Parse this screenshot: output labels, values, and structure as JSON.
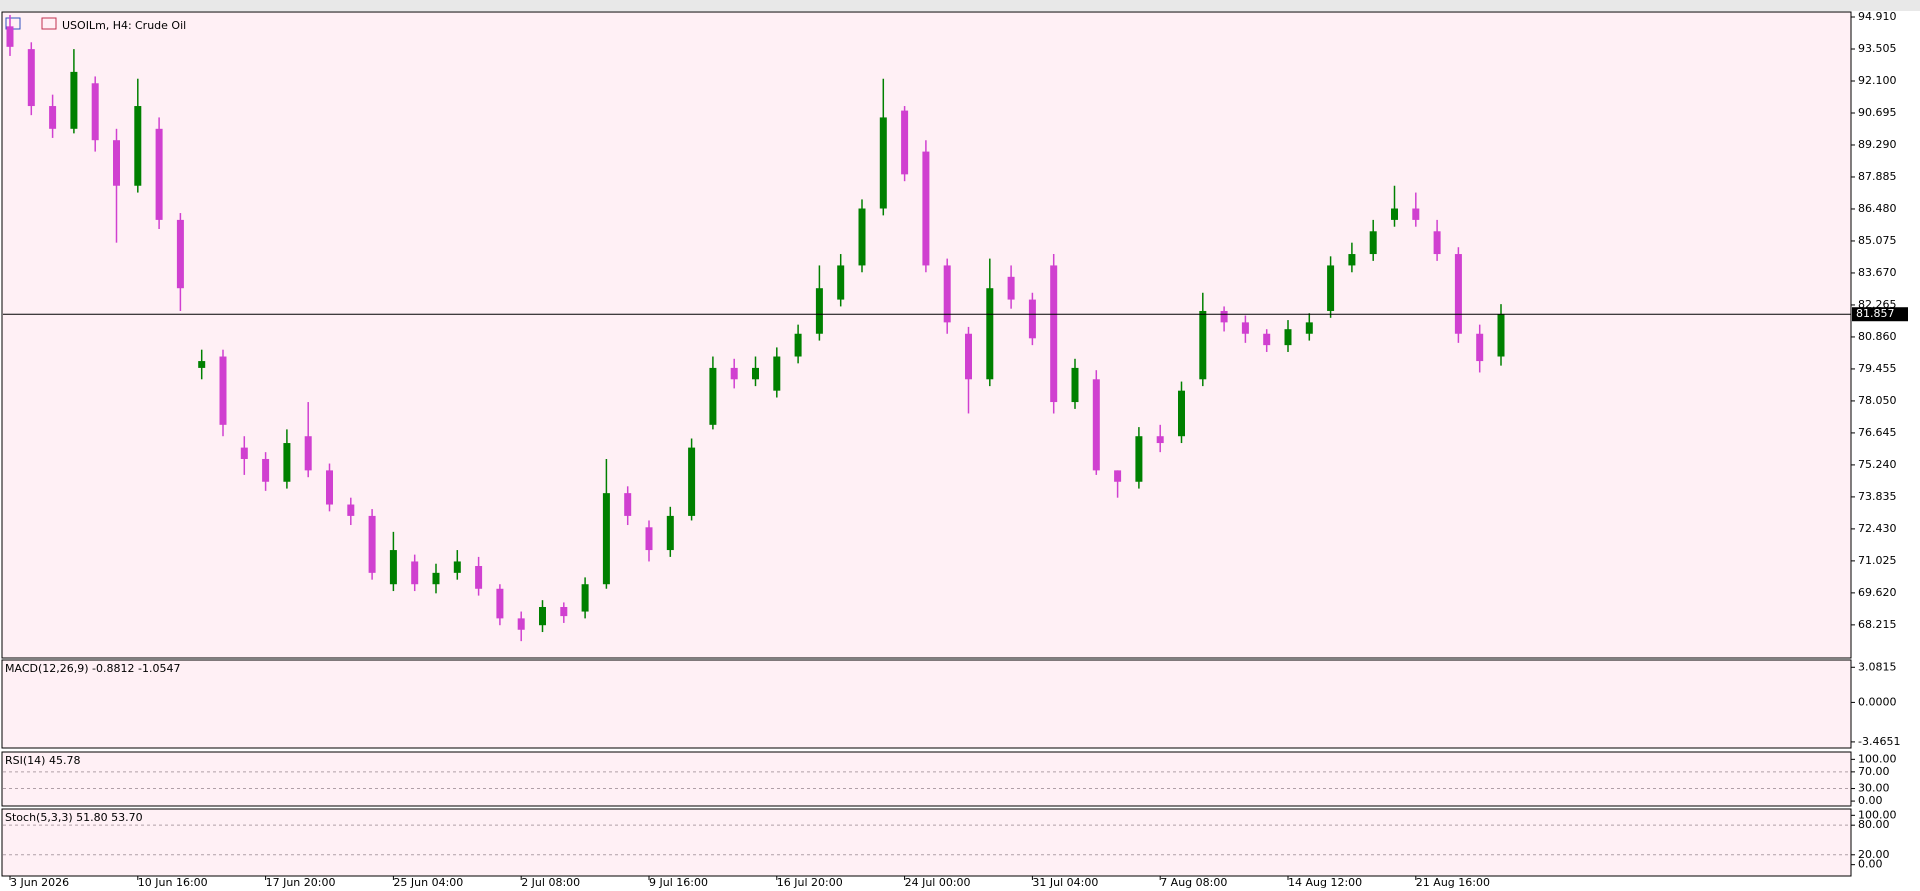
{
  "chart_data": [
    {
      "type": "candlestick",
      "symbol": "USOILm, H4:",
      "description": "Crude Oil",
      "categories": [
        "3 Jun 2026",
        null,
        null,
        null,
        null,
        null,
        "10 Jun 16:00",
        null,
        null,
        null,
        null,
        null,
        "17 Jun 20:00",
        null,
        null,
        null,
        null,
        null,
        "25 Jun 04:00",
        null,
        null,
        null,
        null,
        null,
        "2 Jul 08:00",
        null,
        null,
        null,
        null,
        null,
        "9 Jul 16:00",
        null,
        null,
        null,
        null,
        null,
        "16 Jul 20:00",
        null,
        null,
        null,
        null,
        null,
        "24 Jul 00:00",
        null,
        null,
        null,
        null,
        null,
        "31 Jul 04:00",
        null,
        null,
        null,
        null,
        null,
        "7 Aug 08:00",
        null,
        null,
        null,
        null,
        null,
        "14 Aug 12:00",
        null,
        null,
        null,
        null,
        null,
        "21 Aug 16:00",
        null,
        null,
        null,
        null
      ],
      "open": [
        94.5,
        93.5,
        91,
        90,
        92,
        89.5,
        87.5,
        90,
        86,
        79.5,
        80,
        76,
        75.5,
        74.5,
        76.5,
        75,
        73.5,
        73,
        70,
        71,
        70,
        70.5,
        70.8,
        69.8,
        68.5,
        68.2,
        69,
        68.8,
        70,
        74,
        72.5,
        71.5,
        73,
        77,
        79.5,
        79,
        78.5,
        80,
        81,
        82.5,
        84,
        86.5,
        90.8,
        89,
        84,
        81,
        79,
        83.5,
        82.5,
        84,
        78,
        79,
        75,
        74.5,
        76.5,
        76.5,
        79,
        82,
        81.5,
        81,
        80.5,
        81,
        82,
        84,
        84.5,
        86,
        86.5,
        85.5,
        84.5,
        81,
        80
      ],
      "high": [
        95,
        93.8,
        91.5,
        93.5,
        92.3,
        90,
        92.2,
        90.5,
        86.3,
        80.3,
        80.3,
        76.5,
        75.8,
        76.8,
        78,
        75.3,
        73.8,
        73.3,
        72.3,
        71.3,
        70.9,
        71.5,
        71.2,
        70,
        68.8,
        69.3,
        69.2,
        70.3,
        75.5,
        74.3,
        72.8,
        73.4,
        76.4,
        80,
        79.9,
        80,
        80.4,
        81.4,
        84,
        84.5,
        86.9,
        92.2,
        91,
        89.5,
        84.3,
        81.3,
        84.3,
        84,
        82.8,
        84.5,
        79.9,
        79.4,
        75,
        76.9,
        77,
        78.9,
        82.8,
        82.2,
        81.8,
        81.2,
        81.6,
        81.9,
        84.4,
        85,
        86,
        87.5,
        87.2,
        86,
        84.8,
        81.4,
        82.3
      ],
      "low": [
        93.2,
        90.6,
        89.6,
        89.8,
        89,
        85,
        87.2,
        85.6,
        82,
        79,
        76.5,
        74.8,
        74.1,
        74.2,
        74.7,
        73.2,
        72.6,
        70.2,
        69.7,
        69.7,
        69.6,
        70.2,
        69.5,
        68.2,
        67.5,
        67.9,
        68.3,
        68.5,
        69.8,
        72.6,
        71,
        71.2,
        72.8,
        76.8,
        78.6,
        78.7,
        78.2,
        79.7,
        80.7,
        82.2,
        83.7,
        86.2,
        87.7,
        83.7,
        81,
        77.5,
        78.7,
        82.1,
        80.5,
        77.5,
        77.7,
        74.8,
        73.8,
        74.2,
        75.8,
        76.2,
        78.7,
        81.1,
        80.6,
        80.2,
        80.2,
        80.7,
        81.7,
        83.7,
        84.2,
        85.7,
        85.7,
        84.2,
        80.6,
        79.3,
        79.6
      ],
      "close": [
        93.6,
        91,
        90,
        92.5,
        89.5,
        87.5,
        91,
        86,
        83,
        79.8,
        77,
        75.5,
        74.5,
        76.2,
        75,
        73.5,
        73,
        70.5,
        71.5,
        70,
        70.5,
        71,
        69.8,
        68.5,
        68,
        69,
        68.6,
        70,
        74,
        73,
        71.5,
        73,
        76,
        79.5,
        79,
        79.5,
        80,
        81,
        83,
        84,
        86.5,
        90.5,
        88,
        84,
        81.5,
        79,
        83,
        82.5,
        80.8,
        78,
        79.5,
        75,
        74.5,
        76.5,
        76.2,
        78.5,
        82,
        81.5,
        81,
        80.5,
        81.2,
        81.5,
        84,
        84.5,
        85.5,
        86.5,
        86,
        84.5,
        81,
        79.8,
        81.857
      ],
      "up_color": "#008000",
      "down_color": "#d040d0",
      "ylim": [
        66.76,
        95.13
      ],
      "yticks": [
        {
          "value": 94.91,
          "label": "94.910"
        },
        93.505,
        {
          "value": 92.1,
          "label": "92.100"
        },
        90.695,
        {
          "value": 89.29,
          "label": "89.290"
        },
        87.885,
        {
          "value": 86.48,
          "label": "86.480"
        },
        85.075,
        {
          "value": 83.67,
          "label": "83.670"
        },
        82.265,
        {
          "value": 80.86,
          "label": "80.860"
        },
        79.455,
        {
          "value": 78.05,
          "label": "78.050"
        },
        76.645,
        {
          "value": 75.24,
          "label": "75.240"
        },
        73.835,
        {
          "value": 72.43,
          "label": "72.430"
        },
        71.025,
        {
          "value": 69.62,
          "label": "69.620"
        },
        68.215
      ],
      "current_price": 81.857,
      "grid": false
    },
    {
      "type": "indicator",
      "title": "MACD(12,26,9) -0.8812 -1.0547",
      "ylim": [
        -4.0,
        3.72
      ],
      "yticks": [
        3.0815,
        {
          "value": 0,
          "label": "0.0000"
        },
        -3.4651
      ],
      "grid": false
    },
    {
      "type": "indicator",
      "title": "RSI(14) 45.78",
      "ylim": [
        -11.8,
        117.6
      ],
      "yticks": [
        {
          "value": 100,
          "label": "100.00"
        },
        {
          "value": 70,
          "label": "70.00"
        },
        {
          "value": 30,
          "label": "30.00"
        },
        {
          "value": 0,
          "label": "0.00"
        }
      ],
      "grid": true
    },
    {
      "type": "indicator",
      "title": "Stoch(5,3,3) 51.80 53.70",
      "ylim": [
        -23,
        112.8
      ],
      "yticks": [
        {
          "value": 100,
          "label": "100.00"
        },
        {
          "value": 80,
          "label": "80.00"
        },
        {
          "value": 20,
          "label": "20.00"
        },
        {
          "value": 0,
          "label": "0.00"
        }
      ],
      "grid": true
    }
  ]
}
